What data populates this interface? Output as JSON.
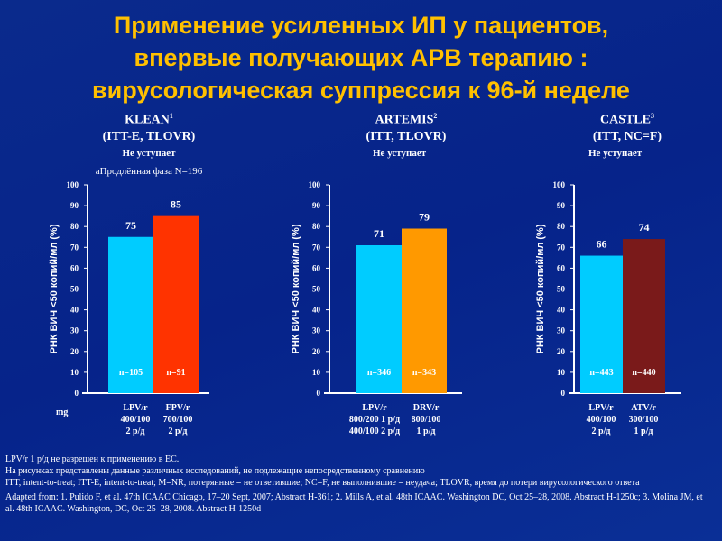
{
  "title": [
    "Применение усиленных ИП у пациентов,",
    "впервые получающих АРВ терапию :",
    "вирусологическая суппрессия к 96-й неделе"
  ],
  "colors": {
    "title": "#ffc000",
    "lpv": "#00ccff",
    "fpv": "#ff3300",
    "drv": "#ff9900",
    "atv": "#7a1a1a",
    "axis": "#ffffff"
  },
  "dose_unit_label": "mg",
  "footnotes": [
    "LPV/r 1 р/д не разрешен к применению в ЕС.",
    "На рисунках представлены данные различных исследований, не подлежащие непосредственному сравнению",
    "ITT, intent-to-treat; ITT-E, intent-to-treat; M=NR, потерянные  =  не ответившие; NC=F, не выполнившие = неудача; TLOVR, время до потери вирусологического ответа",
    "Adapted from: 1. Pulido F, et  al. 47th ICAAC Chicago, 17–20 Sept, 2007; Abstract H-361; 2. Mills A, et al. 48th ICAAC. Washington DC, Oct 25–28, 2008. Abstract H-1250c; 3. Molina JM, et al. 48th ICAAC. Washington, DC, Oct 25–28, 2008. Abstract  H-1250d"
  ],
  "chart_data": [
    {
      "type": "bar",
      "study": "KLEAN",
      "sup": "1",
      "method": "(ITT-E, TLOVR)",
      "verdict": "Не уступает",
      "note": "аПродлённая фаза N=196",
      "ylabel": "РНК ВИЧ <50 копий/мл (%)",
      "ylim": [
        0,
        100
      ],
      "yticks": [
        0,
        10,
        20,
        30,
        40,
        50,
        60,
        70,
        80,
        90,
        100
      ],
      "categories": [
        [
          "LPV/r",
          "400/100",
          "2 р/д"
        ],
        [
          "FPV/r",
          "700/100",
          "2 р/д"
        ]
      ],
      "values": [
        75,
        85
      ],
      "n_labels": [
        "n=105",
        "n=91"
      ],
      "colors": [
        "#00ccff",
        "#ff3300"
      ]
    },
    {
      "type": "bar",
      "study": "ARTEMIS",
      "sup": "2",
      "method": "(ITT, TLOVR)",
      "verdict": "Не уступает",
      "ylabel": "РНК ВИЧ <50 копий/мл (%)",
      "ylim": [
        0,
        100
      ],
      "yticks": [
        0,
        10,
        20,
        30,
        40,
        50,
        60,
        70,
        80,
        90,
        100
      ],
      "categories": [
        [
          "LPV/r",
          "800/200 1 р/д",
          "400/100 2 р/д"
        ],
        [
          "DRV/r",
          "800/100",
          "1 р/д"
        ]
      ],
      "values": [
        71,
        79
      ],
      "n_labels": [
        "n=346",
        "n=343"
      ],
      "colors": [
        "#00ccff",
        "#ff9900"
      ]
    },
    {
      "type": "bar",
      "study": "CASTLE",
      "sup": "3",
      "method": "(ITT, NC=F)",
      "verdict": "Не уступает",
      "ylabel": "РНК ВИЧ <50 копий/мл (%)",
      "ylim": [
        0,
        100
      ],
      "yticks": [
        0,
        10,
        20,
        30,
        40,
        50,
        60,
        70,
        80,
        90,
        100
      ],
      "categories": [
        [
          "LPV/r",
          "400/100",
          "2 р/д"
        ],
        [
          "ATV/r",
          "300/100",
          "1 р/д"
        ]
      ],
      "values": [
        66,
        74
      ],
      "n_labels": [
        "n=443",
        "n=440"
      ],
      "colors": [
        "#00ccff",
        "#7a1a1a"
      ]
    }
  ]
}
